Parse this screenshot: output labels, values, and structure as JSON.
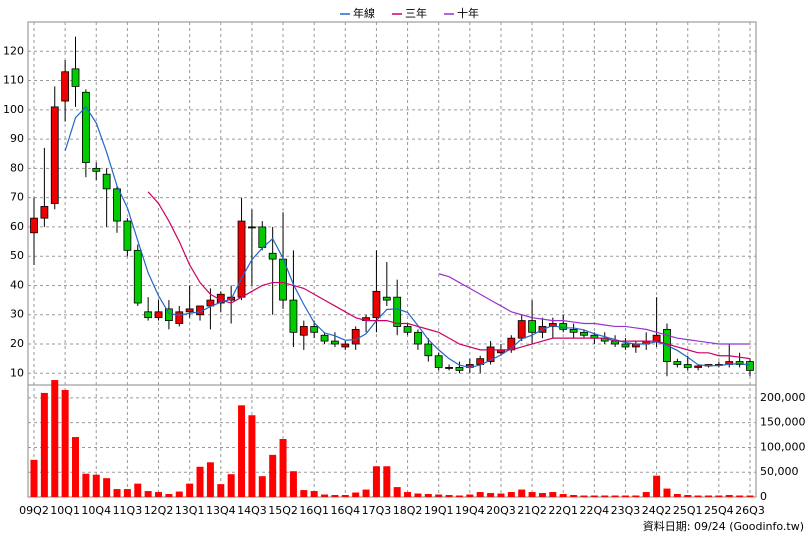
{
  "chart_data": [
    {
      "type": "candlestick",
      "categories": [
        "09Q2",
        null,
        null,
        "10Q1",
        null,
        null,
        "10Q4",
        null,
        null,
        "11Q3",
        null,
        null,
        "12Q2",
        null,
        null,
        "13Q1",
        null,
        null,
        "13Q4",
        null,
        null,
        "14Q3",
        null,
        null,
        "15Q2",
        null,
        null,
        "16Q1",
        null,
        null,
        "16Q4",
        null,
        null,
        "17Q3",
        null,
        null,
        "18Q2",
        null,
        null,
        "19Q1",
        null,
        null,
        "19Q4",
        null,
        null,
        "20Q3",
        null,
        null,
        "21Q2",
        null,
        null,
        "22Q1",
        null,
        null,
        "22Q4",
        null,
        null,
        "23Q3",
        null,
        null,
        "24Q2",
        null,
        null,
        "25Q1",
        null,
        null,
        "25Q4",
        null,
        null,
        "26Q3"
      ],
      "open": [
        58,
        63,
        68,
        103,
        114,
        106,
        80,
        78,
        73,
        62,
        52,
        31,
        29,
        32,
        27,
        31,
        30,
        33,
        34,
        35,
        36,
        60,
        60,
        51,
        49,
        35,
        23,
        26,
        23,
        21,
        19,
        20,
        28,
        29,
        36,
        36,
        26,
        24,
        20,
        16,
        12,
        12,
        12,
        13,
        14,
        17,
        18,
        22,
        28,
        24,
        26,
        27,
        25,
        24,
        23,
        22,
        21,
        20,
        19,
        20,
        21,
        25,
        14,
        13,
        12,
        12.5,
        13,
        13,
        14,
        14
      ],
      "high": [
        70,
        87,
        108,
        117,
        125,
        107,
        82,
        80,
        74,
        63,
        54,
        36,
        35,
        35,
        33,
        40,
        33,
        39,
        38,
        40,
        70,
        66,
        62,
        60,
        65,
        52,
        28,
        28,
        24,
        24,
        21,
        26,
        30,
        52,
        48,
        42,
        27,
        25,
        22,
        17,
        13,
        14,
        15,
        16,
        21,
        20,
        23,
        30,
        35,
        29,
        29,
        30,
        27,
        25,
        24,
        24,
        23,
        22,
        21,
        24,
        36,
        27,
        15,
        16,
        13,
        13,
        14,
        20,
        17,
        15
      ],
      "low": [
        47,
        60,
        66,
        96,
        101,
        77,
        76,
        60,
        58,
        50,
        33,
        28,
        28,
        25,
        26,
        29,
        28,
        25,
        31,
        27,
        35,
        40,
        52,
        30,
        32,
        19,
        18,
        22,
        20,
        19,
        18,
        18,
        24,
        24,
        33,
        23,
        23,
        18,
        14,
        11,
        11,
        10,
        10,
        10,
        13,
        16,
        17,
        21,
        20,
        22,
        22,
        24,
        22,
        22,
        20,
        20,
        19,
        18,
        17,
        18,
        19,
        9,
        12,
        11,
        11,
        12,
        12,
        12,
        12,
        9
      ],
      "close": [
        63,
        67,
        101,
        113,
        108,
        82,
        79,
        73,
        62,
        52,
        34,
        29,
        31,
        28,
        31,
        32,
        33,
        35,
        37,
        36,
        62,
        60,
        53,
        49,
        35,
        24,
        26,
        24,
        21,
        20,
        20,
        25,
        29,
        38,
        35,
        26,
        24,
        20,
        16,
        12,
        12,
        11,
        13,
        15,
        19,
        18,
        22,
        28,
        24,
        26,
        27,
        25,
        24,
        23,
        22,
        21,
        20,
        19,
        20,
        21,
        23,
        14,
        13,
        12,
        12.5,
        13,
        13,
        14,
        13,
        11
      ],
      "up_color": "#ee0000",
      "down_color": "#00cc00",
      "series": [
        {
          "name": "年線",
          "color": "#2266cc",
          "values": [
            null,
            null,
            null,
            86,
            97.3,
            101,
            95.5,
            85.5,
            74,
            66.5,
            55.3,
            44.3,
            36.5,
            30.5,
            29.8,
            30.5,
            31,
            32.8,
            34.3,
            35.3,
            42.5,
            48.8,
            52.8,
            56,
            49.3,
            40.3,
            33.5,
            27.3,
            23.8,
            22.8,
            21.3,
            21.5,
            23.5,
            28,
            31.8,
            32,
            30.8,
            26.3,
            21.5,
            18,
            15,
            12.8,
            12,
            12.8,
            14.5,
            16.3,
            18.5,
            21.8,
            23,
            25,
            26.3,
            25.5,
            25.5,
            24.8,
            23.5,
            22.5,
            21.5,
            20.5,
            20,
            20,
            20.8,
            19.5,
            17.8,
            15.5,
            12.9,
            12.6,
            12.6,
            13.1,
            13.3,
            12.8
          ]
        },
        {
          "name": "三年",
          "color": "#cc0066",
          "values": [
            null,
            null,
            null,
            null,
            null,
            null,
            null,
            null,
            null,
            null,
            null,
            72,
            68,
            62,
            55,
            47,
            41,
            37,
            35,
            34,
            36,
            38,
            40,
            41,
            41,
            40,
            39,
            37,
            35,
            33,
            31,
            29,
            28,
            28,
            28,
            27,
            27,
            26,
            25,
            24,
            22,
            20,
            19,
            18,
            18,
            18,
            18,
            19,
            20,
            21,
            22,
            22,
            22,
            22,
            22,
            22,
            21,
            21,
            21,
            21,
            21,
            20,
            19,
            18,
            17,
            17,
            16,
            16,
            15.5,
            15
          ]
        },
        {
          "name": "十年",
          "color": "#9933cc",
          "values": [
            null,
            null,
            null,
            null,
            null,
            null,
            null,
            null,
            null,
            null,
            null,
            null,
            null,
            null,
            null,
            null,
            null,
            null,
            null,
            null,
            null,
            null,
            null,
            null,
            null,
            null,
            null,
            null,
            null,
            null,
            null,
            null,
            null,
            null,
            null,
            null,
            null,
            null,
            null,
            44,
            43,
            41,
            39,
            37,
            35,
            33,
            31,
            30,
            29,
            28.5,
            28,
            28,
            27.5,
            27,
            27,
            26.5,
            26,
            26,
            25.5,
            25,
            24,
            23,
            22,
            21.5,
            21,
            20.5,
            20,
            20,
            20,
            20
          ]
        }
      ],
      "ylim": [
        6,
        130
      ],
      "yticks": [
        10,
        20,
        30,
        40,
        50,
        60,
        70,
        80,
        90,
        100,
        110,
        120
      ],
      "grid": true,
      "source": "資料日期: 09/24 (Goodinfo.tw)"
    },
    {
      "type": "bar",
      "color": "#ff0000",
      "values": [
        75000,
        210000,
        236000,
        216000,
        121000,
        47000,
        45000,
        38000,
        16000,
        16000,
        27000,
        12000,
        10000,
        6000,
        11000,
        27000,
        61000,
        70000,
        26000,
        46000,
        185000,
        165000,
        42000,
        85000,
        117000,
        52000,
        14000,
        12000,
        5000,
        4000,
        4000,
        9000,
        15000,
        62000,
        62000,
        20000,
        10000,
        7000,
        6000,
        5000,
        4000,
        3000,
        5000,
        10000,
        8000,
        7000,
        10000,
        15000,
        10000,
        8000,
        10000,
        6000,
        4000,
        3000,
        3000,
        3000,
        3000,
        3000,
        3000,
        10000,
        43000,
        17000,
        6000,
        4000,
        3000,
        3000,
        3000,
        4000,
        3000,
        3000
      ],
      "ylim": [
        0,
        226000
      ],
      "yticks": [
        0,
        {
          "value": 50000,
          "label": "50,000"
        },
        {
          "value": 100000,
          "label": "100,000"
        },
        {
          "value": 150000,
          "label": "150,000"
        },
        {
          "value": 200000,
          "label": "200,000"
        }
      ],
      "grid": true
    }
  ]
}
